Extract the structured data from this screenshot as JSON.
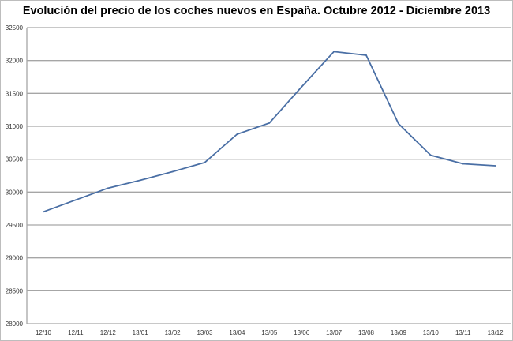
{
  "chart_data": {
    "type": "line",
    "title": "Evolución del precio de los coches nuevos en España. Octubre 2012 - Diciembre 2013",
    "xlabel": "",
    "ylabel": "",
    "categories": [
      "12/10",
      "12/11",
      "12/12",
      "13/01",
      "13/02",
      "13/03",
      "13/04",
      "13/05",
      "13/06",
      "13/07",
      "13/08",
      "13/09",
      "13/10",
      "13/11",
      "13/12"
    ],
    "series": [
      {
        "values": [
          29700,
          29880,
          30060,
          30180,
          30310,
          30450,
          30880,
          31050,
          31600,
          32135,
          32080,
          31040,
          30560,
          30430,
          30400
        ],
        "color": "#4a6fa5"
      }
    ],
    "ylim": [
      28000,
      32500
    ],
    "yticks": [
      28000,
      28500,
      29000,
      29500,
      30000,
      30500,
      31000,
      31500,
      32000,
      32500
    ],
    "grid": true,
    "legend": "none"
  }
}
